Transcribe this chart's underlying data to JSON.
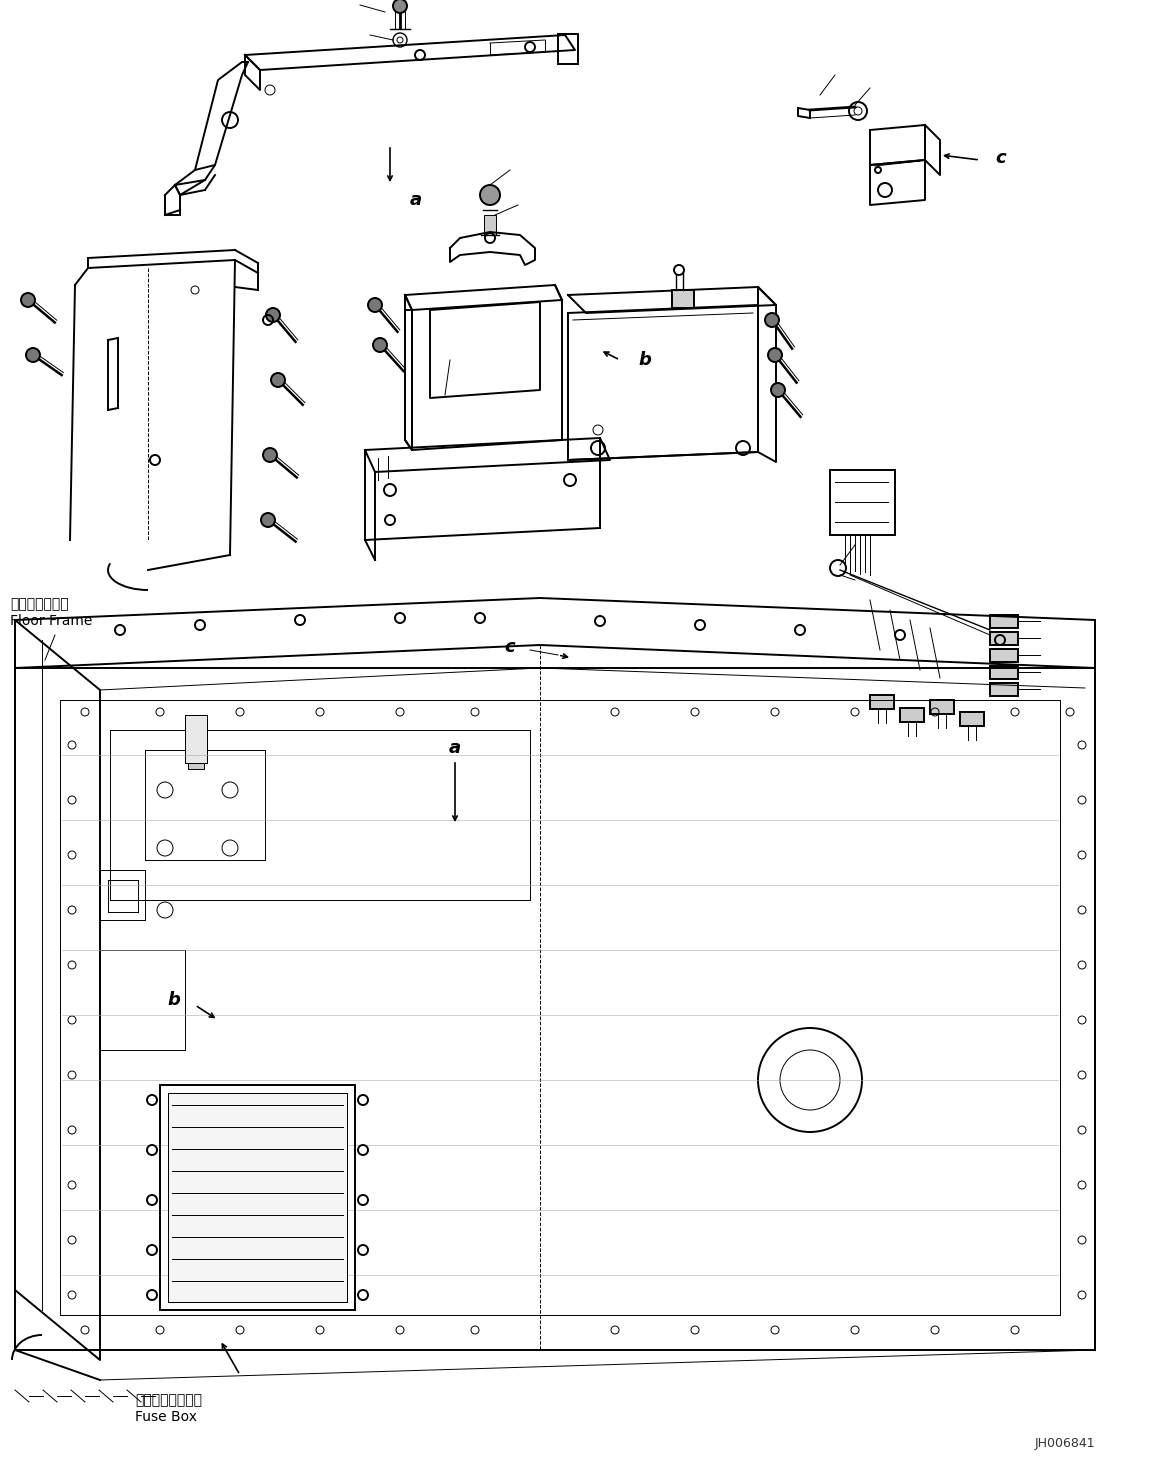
{
  "figure_width": 11.63,
  "figure_height": 14.66,
  "dpi": 100,
  "bg_color": "#ffffff",
  "line_color": "#000000",
  "label_floor_frame_jp": "フロアフレーム",
  "label_floor_frame_en": "Floor Frame",
  "label_fuse_box_jp": "フューズボックス",
  "label_fuse_box_en": "Fuse Box",
  "label_a1": "a",
  "label_b1": "b",
  "label_c1": "c",
  "label_a2": "a",
  "label_b2": "b",
  "label_c2": "c",
  "diagram_id": "JH006841",
  "font_size_labels": 10,
  "font_size_ids": 13,
  "font_size_diagram_id": 9
}
